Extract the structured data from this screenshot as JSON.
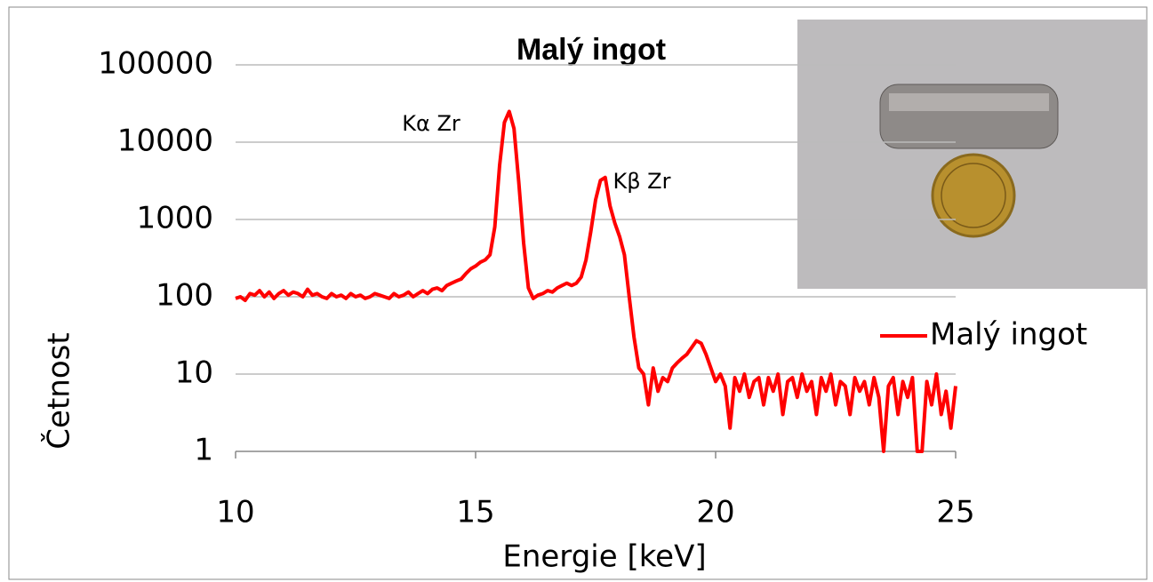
{
  "chart_data": {
    "type": "line",
    "title": "Malý ingot",
    "x_label": "Energie [keV]",
    "y_label": "Četnost",
    "annotations": [
      "Kα Zr",
      "Kβ Zr"
    ],
    "x": [
      10.0,
      10.1,
      10.2,
      10.3,
      10.4,
      10.5,
      10.6,
      10.7,
      10.8,
      10.9,
      11.0,
      11.1,
      11.2,
      11.3,
      11.4,
      11.5,
      11.6,
      11.7,
      11.8,
      11.9,
      12.0,
      12.1,
      12.2,
      12.3,
      12.4,
      12.5,
      12.6,
      12.7,
      12.8,
      12.9,
      13.0,
      13.1,
      13.2,
      13.3,
      13.4,
      13.5,
      13.6,
      13.7,
      13.8,
      13.9,
      14.0,
      14.1,
      14.2,
      14.3,
      14.4,
      14.5,
      14.6,
      14.7,
      14.8,
      14.9,
      15.0,
      15.1,
      15.2,
      15.3,
      15.4,
      15.5,
      15.6,
      15.7,
      15.8,
      15.9,
      16.0,
      16.1,
      16.2,
      16.3,
      16.4,
      16.5,
      16.6,
      16.7,
      16.8,
      16.9,
      17.0,
      17.1,
      17.2,
      17.3,
      17.4,
      17.5,
      17.6,
      17.7,
      17.8,
      17.9,
      18.0,
      18.1,
      18.2,
      18.3,
      18.4,
      18.5,
      18.6,
      18.7,
      18.8,
      18.9,
      19.0,
      19.1,
      19.2,
      19.3,
      19.4,
      19.5,
      19.6,
      19.7,
      19.8,
      19.9,
      20.0,
      20.1,
      20.2,
      20.3,
      20.4,
      20.5,
      20.6,
      20.7,
      20.8,
      20.9,
      21.0,
      21.1,
      21.2,
      21.3,
      21.4,
      21.5,
      21.6,
      21.7,
      21.8,
      21.9,
      22.0,
      22.1,
      22.2,
      22.3,
      22.4,
      22.5,
      22.6,
      22.7,
      22.8,
      22.9,
      23.0,
      23.1,
      23.2,
      23.3,
      23.4,
      23.5,
      23.6,
      23.7,
      23.8,
      23.9,
      24.0,
      24.1,
      24.2,
      24.3,
      24.4,
      24.5,
      24.6,
      24.7,
      24.8,
      24.9,
      25.0
    ],
    "series": [
      {
        "name": "Malý ingot",
        "color": "#ff0000",
        "values": [
          95,
          100,
          90,
          110,
          105,
          120,
          100,
          115,
          95,
          110,
          120,
          105,
          115,
          110,
          100,
          125,
          105,
          110,
          100,
          95,
          110,
          100,
          105,
          95,
          110,
          100,
          105,
          95,
          100,
          110,
          105,
          100,
          95,
          110,
          100,
          105,
          115,
          100,
          110,
          120,
          110,
          125,
          130,
          120,
          140,
          150,
          160,
          170,
          200,
          230,
          250,
          280,
          300,
          350,
          800,
          5000,
          18000,
          25000,
          15000,
          3000,
          500,
          130,
          95,
          105,
          110,
          120,
          115,
          130,
          140,
          150,
          140,
          150,
          180,
          300,
          700,
          1800,
          3200,
          3500,
          1500,
          900,
          600,
          350,
          100,
          30,
          12,
          10,
          4,
          12,
          6,
          9,
          8,
          12,
          14,
          16,
          18,
          22,
          27,
          25,
          18,
          12,
          8,
          10,
          7,
          2,
          9,
          6,
          10,
          5,
          8,
          9,
          4,
          9,
          6,
          10,
          3,
          8,
          9,
          5,
          10,
          6,
          8,
          3,
          9,
          6,
          10,
          4,
          8,
          7,
          3,
          9,
          6,
          8,
          4,
          9,
          5,
          1,
          7,
          9,
          3,
          8,
          5,
          9,
          1,
          1,
          8,
          4,
          10,
          3,
          6,
          2,
          7
        ]
      }
    ],
    "xlim": [
      10,
      25
    ],
    "xticks": [
      10,
      15,
      20,
      25
    ],
    "ylim": [
      1,
      100000
    ],
    "yticks": [
      1,
      10,
      100,
      1000,
      10000,
      100000
    ],
    "log_y": true,
    "grid": true,
    "legend": "right"
  }
}
